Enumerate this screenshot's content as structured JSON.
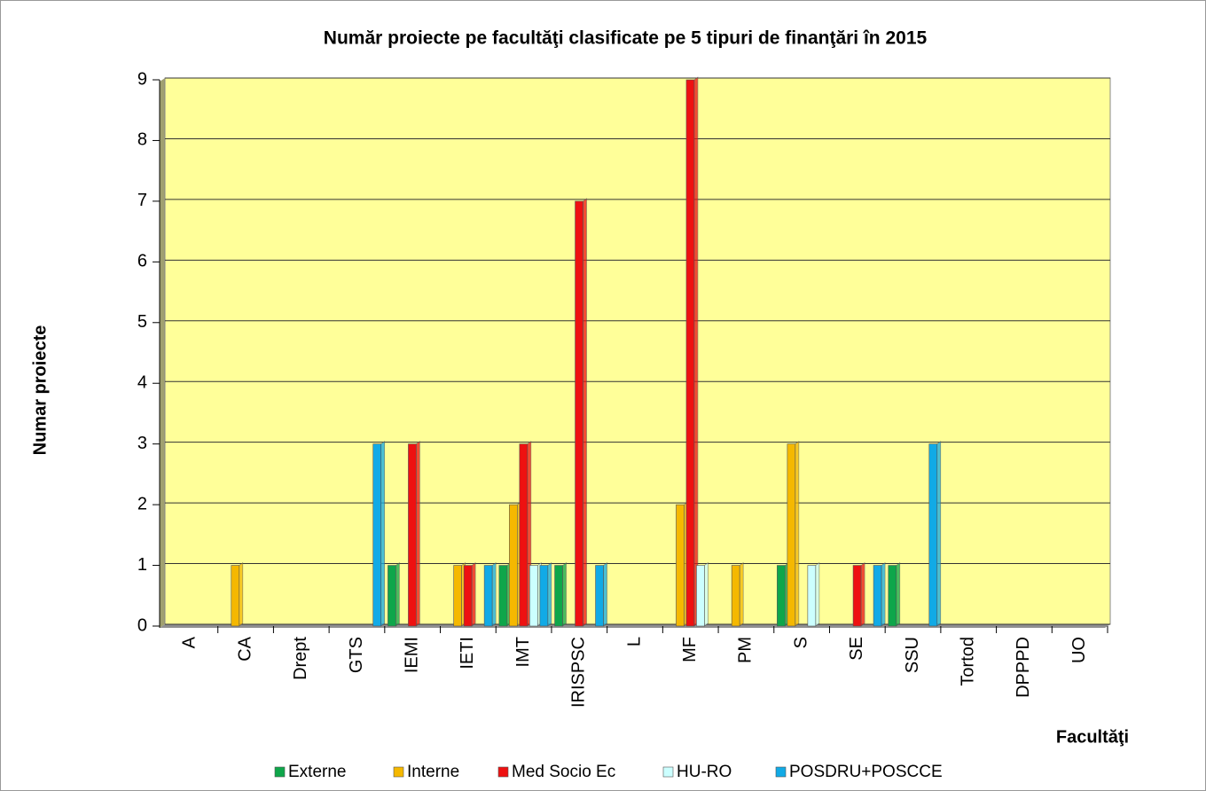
{
  "chart_data": {
    "type": "bar",
    "title": "Număr proiecte pe facultăţi clasificate pe 5 tipuri de finanţări în 2015",
    "y_label": "Numar proiecte",
    "x_label": "Facultăţi",
    "categories": [
      "A",
      "CA",
      "Drept",
      "GTS",
      "IEMI",
      "IETI",
      "IMT",
      "IRISPSC",
      "L",
      "MF",
      "PM",
      "S",
      "SE",
      "SSU",
      "Tortod",
      "DPPPD",
      "UO"
    ],
    "series": [
      {
        "name": "Externe",
        "color": "#0ea64a",
        "values": [
          0,
          0,
          0,
          0,
          1,
          0,
          1,
          1,
          0,
          0,
          0,
          1,
          0,
          1,
          0,
          0,
          0
        ]
      },
      {
        "name": "Interne",
        "color": "#f5b800",
        "values": [
          0,
          1,
          0,
          0,
          0,
          1,
          2,
          0,
          0,
          2,
          1,
          3,
          0,
          0,
          0,
          0,
          0
        ]
      },
      {
        "name": "Med Socio Ec",
        "color": "#ee1111",
        "values": [
          0,
          0,
          0,
          0,
          3,
          1,
          3,
          7,
          0,
          9,
          0,
          0,
          1,
          0,
          0,
          0,
          0
        ]
      },
      {
        "name": "HU-RO",
        "color": "#ccffff",
        "values": [
          0,
          0,
          0,
          0,
          0,
          0,
          1,
          0,
          0,
          1,
          0,
          1,
          0,
          0,
          0,
          0,
          0
        ]
      },
      {
        "name": "POSDRU+POSCCE",
        "color": "#11aae6",
        "values": [
          0,
          0,
          0,
          3,
          0,
          1,
          1,
          1,
          0,
          0,
          0,
          0,
          1,
          3,
          0,
          0,
          0
        ]
      }
    ],
    "ylim": [
      0,
      9
    ],
    "yticks": [
      0,
      1,
      2,
      3,
      4,
      5,
      6,
      7,
      8,
      9
    ],
    "grid": true,
    "legend": "bottom"
  }
}
